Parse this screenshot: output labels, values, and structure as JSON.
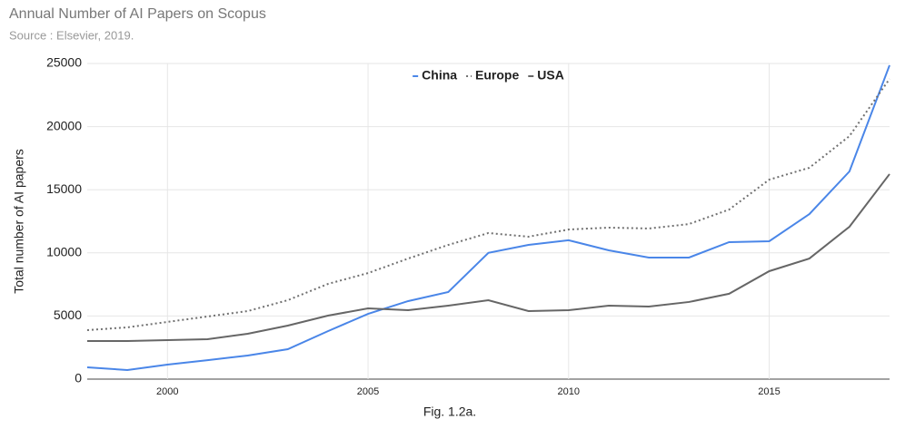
{
  "chart_data": {
    "type": "line",
    "title": "Annual Number of AI Papers on Scopus",
    "subtitle": "Source : Elsevier, 2019.",
    "ylabel": "Total number of AI papers",
    "caption": "Fig. 1.2a.",
    "x": [
      1998,
      1999,
      2000,
      2001,
      2002,
      2003,
      2004,
      2005,
      2006,
      2007,
      2008,
      2009,
      2010,
      2011,
      2012,
      2013,
      2014,
      2015,
      2016,
      2017,
      2018
    ],
    "series": [
      {
        "name": "China",
        "color": "#4a86e8",
        "style": "solid",
        "values": [
          930,
          720,
          1150,
          1500,
          1870,
          2370,
          3800,
          5170,
          6180,
          6900,
          10000,
          10630,
          11000,
          10200,
          9630,
          9630,
          10850,
          10920,
          13070,
          16450,
          24860
        ]
      },
      {
        "name": "Europe",
        "color": "#707070",
        "style": "dotted",
        "values": [
          3880,
          4100,
          4530,
          4960,
          5390,
          6250,
          7540,
          8400,
          9550,
          10630,
          11570,
          11280,
          11850,
          12000,
          11930,
          12280,
          13430,
          15800,
          16740,
          19250,
          23780
        ]
      },
      {
        "name": "USA",
        "color": "#666666",
        "style": "solid",
        "values": [
          3020,
          3020,
          3090,
          3160,
          3590,
          4240,
          5030,
          5600,
          5460,
          5820,
          6250,
          5390,
          5460,
          5820,
          5750,
          6110,
          6760,
          8550,
          9550,
          12070,
          16240
        ]
      }
    ],
    "xlim": [
      1998,
      2018
    ],
    "xticks": [
      2000,
      2005,
      2010,
      2015
    ],
    "ylim": [
      0,
      25000
    ],
    "yticks": [
      0,
      5000,
      10000,
      15000,
      20000,
      25000
    ],
    "grid": true,
    "legend_position": "top"
  }
}
